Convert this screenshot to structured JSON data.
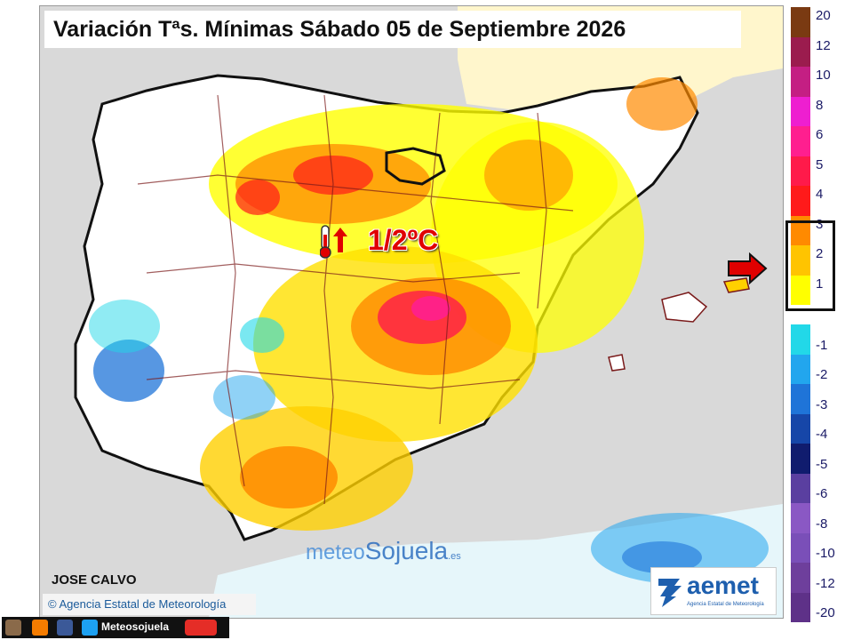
{
  "title": "Variación Tªs. Mínimas Sábado 05 de Septiembre 2026",
  "highlight": {
    "value_label": "1/2ºC",
    "icon": "thermometer-rising-icon",
    "color": "#e00000"
  },
  "legend": {
    "items": [
      {
        "label": "20",
        "color": "#7a3a12"
      },
      {
        "label": "12",
        "color": "#9b1c4e"
      },
      {
        "label": "10",
        "color": "#c41f83"
      },
      {
        "label": "8",
        "color": "#ee1fd0"
      },
      {
        "label": "6",
        "color": "#ff1f8f"
      },
      {
        "label": "5",
        "color": "#ff1a4a"
      },
      {
        "label": "4",
        "color": "#ff1a1a"
      },
      {
        "label": "3",
        "color": "#ff8a00"
      },
      {
        "label": "2",
        "color": "#ffc400"
      },
      {
        "label": "1",
        "color": "#ffff00"
      },
      {
        "label": "-1",
        "color": "#22d8e8"
      },
      {
        "label": "-2",
        "color": "#22a6ee"
      },
      {
        "label": "-3",
        "color": "#1f74d8"
      },
      {
        "label": "-4",
        "color": "#1646a8"
      },
      {
        "label": "-5",
        "color": "#101c6e"
      },
      {
        "label": "-6",
        "color": "#5a3fa0"
      },
      {
        "label": "-8",
        "color": "#8a58c4"
      },
      {
        "label": "-10",
        "color": "#7a4fb8"
      },
      {
        "label": "-12",
        "color": "#6e3f9c"
      },
      {
        "label": "-20",
        "color": "#5e3188"
      }
    ],
    "highlighted_range": [
      "1",
      "3"
    ]
  },
  "author": "JOSE CALVO",
  "agency_credit": "Agencia Estatal de Meteorología",
  "watermark": {
    "part1": "meteo",
    "part2": "Sojuela",
    "suffix": ".es"
  },
  "aemet_logo": {
    "name": "aemet",
    "subtitle": "Agencia Estatal de Meteorología"
  },
  "social": {
    "handle": "Meteosojuela",
    "icons": [
      "instagram-icon",
      "blogger-icon",
      "facebook-icon",
      "twitter-icon",
      "youtube-icon"
    ]
  },
  "colors": {
    "sea": "#d9d9d9",
    "land_neutral": "#ffffff",
    "border": "#7a1a1a",
    "coast": "#111111"
  }
}
